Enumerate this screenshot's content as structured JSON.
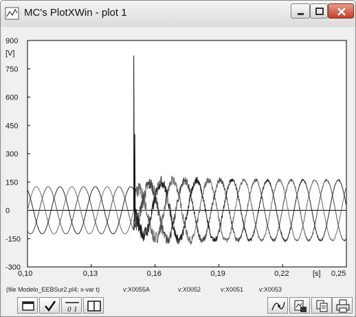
{
  "window": {
    "title": "MC's PlotXWin - plot 1"
  },
  "chart_data": {
    "type": "line",
    "ylabel": "[V]",
    "xlabel": "[s]",
    "xlim": [
      0.1,
      0.25
    ],
    "ylim": [
      -300,
      900
    ],
    "x_ticks": [
      "0,10",
      "0,13",
      "0,16",
      "0,19",
      "0,22",
      "0,25"
    ],
    "y_ticks": [
      "900",
      "750",
      "600",
      "450",
      "300",
      "150",
      "0",
      "-150",
      "-300"
    ],
    "grid": false,
    "fault": {
      "time": 0.15,
      "spike_peak": 820,
      "second_peak": 405
    },
    "series": [
      {
        "pre_amplitude": 125,
        "post_amplitude": 160,
        "phase_deg": 0,
        "color": "#6a6a6a"
      },
      {
        "pre_amplitude": 125,
        "post_amplitude": 160,
        "phase_deg": -120,
        "color": "#4a4a4a"
      },
      {
        "pre_amplitude": 125,
        "post_amplitude": 160,
        "phase_deg": 120,
        "color": "#222222"
      }
    ],
    "frequency_hz": 60
  },
  "status": {
    "file_info": "(file Modelo_EEBSur2.pl4; x-var t)",
    "variables": [
      "v:X0055A",
      "v:X0052",
      "v:X0051",
      "v:X0053"
    ]
  },
  "icons": {
    "app": "plot-window-icon",
    "toolbar_left": [
      "window-icon",
      "checkmark-icon",
      "zero-one-icon",
      "split-view-icon"
    ],
    "toolbar_right": [
      "curve-cursor-icon",
      "save-image-icon",
      "copy-icon",
      "print-icon"
    ]
  }
}
